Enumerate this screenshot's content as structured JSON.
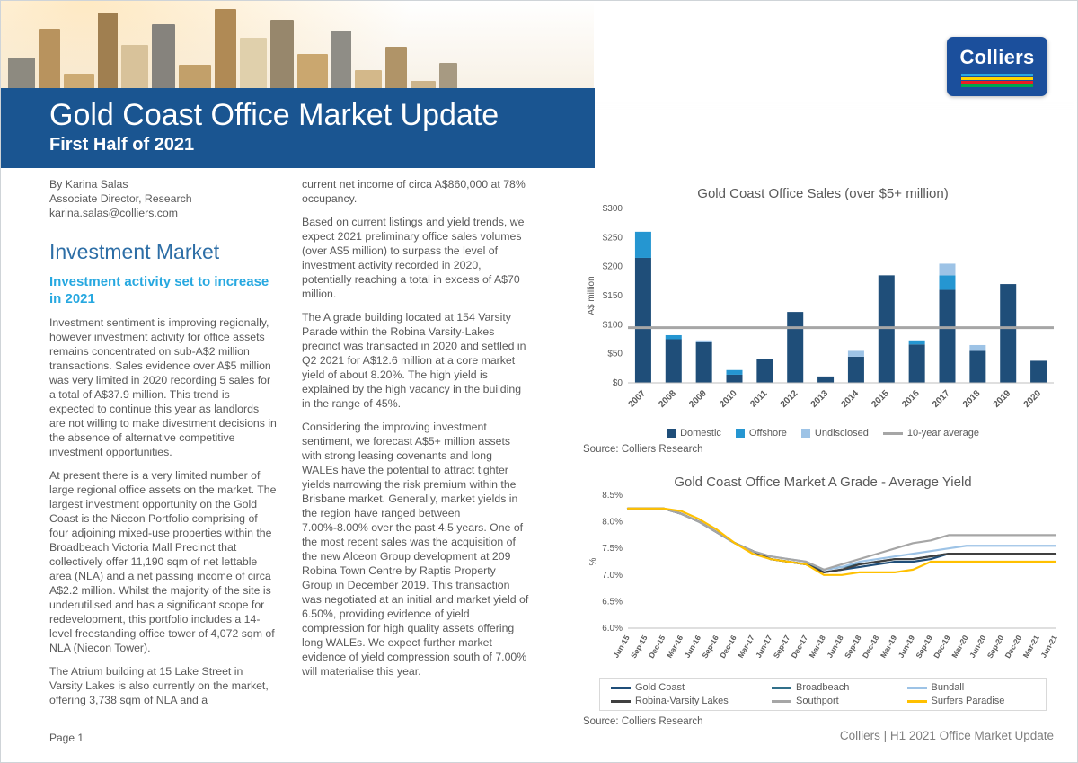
{
  "logo": {
    "text": "Colliers",
    "stripe_colors": [
      "#29a7df",
      "#ffd400",
      "#ed1c24",
      "#00a850"
    ]
  },
  "header": {
    "title": "Gold Coast Office Market Update",
    "subtitle": "First Half of 2021",
    "band_color": "#1a5591"
  },
  "byline": {
    "name": "By Karina Salas",
    "role": "Associate Director, Research",
    "email": "karina.salas@colliers.com"
  },
  "article": {
    "section_heading": "Investment Market",
    "section_subheading": "Investment activity set to increase in 2021",
    "col1_paragraphs": [
      "Investment sentiment is improving regionally, however investment activity for office assets remains concentrated on sub-A$2 million transactions. Sales evidence over A$5 million was very limited in 2020 recording 5 sales for a total of A$37.9 million. This trend is expected to continue this year as landlords are not willing to make divestment decisions in the absence of alternative competitive investment opportunities.",
      "At present there is a very limited number of large regional office assets on the market. The largest investment opportunity on the Gold Coast is the Niecon Portfolio comprising of four adjoining mixed-use properties within the Broadbeach Victoria Mall Precinct that collectively offer 11,190 sqm of net lettable area (NLA) and a net passing income of circa A$2.2 million. Whilst the majority of the site is underutilised and has a significant scope for redevelopment, this portfolio includes a 14-level freestanding office tower of 4,072 sqm of NLA (Niecon Tower).",
      "The Atrium building at 15 Lake Street in Varsity Lakes is also currently on the market, offering 3,738 sqm of NLA and a"
    ],
    "col2_paragraphs": [
      "current net income of circa A$860,000 at 78% occupancy.",
      "Based on current listings and yield trends, we expect 2021 preliminary office sales volumes (over A$5 million) to surpass the level of investment activity recorded in 2020, potentially reaching a total in excess of A$70 million.",
      "The A grade building located at 154 Varsity Parade within the Robina Varsity-Lakes precinct was transacted in 2020 and settled in Q2 2021 for A$12.6 million at a core market yield of about 8.20%. The high yield is explained by the high vacancy in the building in the range of 45%.",
      "Considering the improving investment sentiment, we forecast A$5+ million assets with strong leasing covenants and long WALEs have the potential to attract tighter yields narrowing the risk premium within the Brisbane market. Generally, market yields in the region have ranged between 7.00%-8.00% over the past 4.5 years. One of the most recent sales was the acquisition of the new Alceon Group development at 209 Robina Town Centre by Raptis Property Group in December 2019. This transaction was negotiated at an initial and market yield of 6.50%, providing evidence of yield compression for high quality assets offering long WALEs. We expect further market evidence of yield compression south of 7.00% will materialise this year."
    ]
  },
  "chart_data": [
    {
      "type": "bar",
      "title": "Gold Coast Office Sales (over $5+ million)",
      "ylabel": "A$ million",
      "ylim": [
        0,
        300
      ],
      "yticks": [
        "$0",
        "$50",
        "$100",
        "$150",
        "$200",
        "$250",
        "$300"
      ],
      "categories": [
        "2007",
        "2008",
        "2009",
        "2010",
        "2011",
        "2012",
        "2013",
        "2014",
        "2015",
        "2016",
        "2017",
        "2018",
        "2019",
        "2020"
      ],
      "series": [
        {
          "name": "Domestic",
          "color": "#1f4e79",
          "values": [
            215,
            75,
            70,
            14,
            41,
            122,
            11,
            45,
            185,
            66,
            160,
            55,
            170,
            38
          ]
        },
        {
          "name": "Offshore",
          "color": "#2596d1",
          "values": [
            45,
            7,
            0,
            8,
            0,
            0,
            0,
            0,
            0,
            7,
            25,
            0,
            0,
            0
          ]
        },
        {
          "name": "Undisclosed",
          "color": "#9dc3e6",
          "values": [
            0,
            0,
            3,
            0,
            0,
            0,
            0,
            10,
            0,
            0,
            20,
            10,
            0,
            0
          ]
        }
      ],
      "average_line": {
        "name": "10-year average",
        "color": "#a6a6a6",
        "value": 95
      },
      "legend_position": "bottom",
      "grid": false,
      "source": "Source: Colliers Research"
    },
    {
      "type": "line",
      "title": "Gold Coast Office Market A Grade - Average Yield",
      "ylabel": "%",
      "ylim": [
        6.0,
        8.5
      ],
      "yticks": [
        "6.0%",
        "6.5%",
        "7.0%",
        "7.5%",
        "8.0%",
        "8.5%"
      ],
      "x": [
        "Jun-15",
        "Sep-15",
        "Dec-15",
        "Mar-16",
        "Jun-16",
        "Sep-16",
        "Dec-16",
        "Mar-17",
        "Jun-17",
        "Sep-17",
        "Dec-17",
        "Mar-18",
        "Jun-18",
        "Sep-18",
        "Dec-18",
        "Mar-19",
        "Jun-19",
        "Sep-19",
        "Dec-19",
        "Mar-20",
        "Jun-20",
        "Sep-20",
        "Dec-20",
        "Mar-21",
        "Jun-21"
      ],
      "series": [
        {
          "name": "Gold Coast",
          "color": "#1f4e79",
          "values": [
            8.25,
            8.25,
            8.25,
            8.15,
            8.0,
            7.8,
            7.6,
            7.45,
            7.3,
            7.25,
            7.2,
            7.05,
            7.1,
            7.15,
            7.2,
            7.25,
            7.25,
            7.3,
            7.4,
            7.4,
            7.4,
            7.4,
            7.4,
            7.4,
            7.4
          ]
        },
        {
          "name": "Broadbeach",
          "color": "#31708a",
          "values": [
            8.25,
            8.25,
            8.25,
            8.15,
            8.0,
            7.8,
            7.6,
            7.45,
            7.3,
            7.25,
            7.2,
            7.1,
            7.15,
            7.2,
            7.25,
            7.3,
            7.3,
            7.35,
            7.4,
            7.4,
            7.4,
            7.4,
            7.4,
            7.4,
            7.4
          ]
        },
        {
          "name": "Bundall",
          "color": "#9dc3e6",
          "values": [
            8.25,
            8.25,
            8.25,
            8.15,
            8.0,
            7.8,
            7.6,
            7.45,
            7.35,
            7.3,
            7.25,
            7.1,
            7.15,
            7.25,
            7.3,
            7.35,
            7.4,
            7.45,
            7.5,
            7.55,
            7.55,
            7.55,
            7.55,
            7.55,
            7.55
          ]
        },
        {
          "name": "Robina-Varsity Lakes",
          "color": "#404040",
          "values": [
            8.25,
            8.25,
            8.25,
            8.15,
            8.0,
            7.8,
            7.6,
            7.45,
            7.3,
            7.25,
            7.2,
            7.05,
            7.1,
            7.2,
            7.25,
            7.3,
            7.3,
            7.35,
            7.4,
            7.4,
            7.4,
            7.4,
            7.4,
            7.4,
            7.4
          ]
        },
        {
          "name": "Southport",
          "color": "#a6a6a6",
          "values": [
            8.25,
            8.25,
            8.25,
            8.15,
            8.0,
            7.8,
            7.6,
            7.45,
            7.35,
            7.3,
            7.25,
            7.1,
            7.2,
            7.3,
            7.4,
            7.5,
            7.6,
            7.65,
            7.75,
            7.75,
            7.75,
            7.75,
            7.75,
            7.75,
            7.75
          ]
        },
        {
          "name": "Surfers Paradise",
          "color": "#ffc000",
          "values": [
            8.25,
            8.25,
            8.25,
            8.2,
            8.05,
            7.85,
            7.6,
            7.4,
            7.3,
            7.25,
            7.2,
            7.0,
            7.0,
            7.05,
            7.05,
            7.05,
            7.1,
            7.25,
            7.25,
            7.25,
            7.25,
            7.25,
            7.25,
            7.25,
            7.25
          ]
        }
      ],
      "legend_position": "bottom",
      "grid": false,
      "source": "Source: Colliers Research"
    }
  ],
  "footer": {
    "left": "Page 1",
    "right": "Colliers | H1 2021 Office Market Update"
  },
  "colors": {
    "band_blue": "#1a5591",
    "heading_blue": "#2d6ea6",
    "accent_cyan": "#27a8e0",
    "body_text": "#595959"
  }
}
